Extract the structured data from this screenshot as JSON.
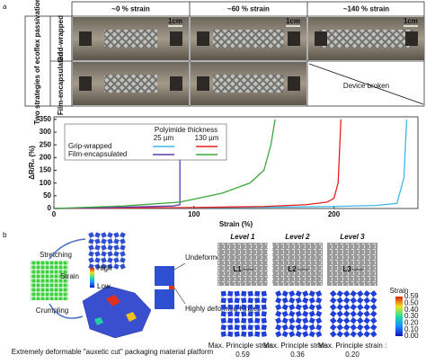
{
  "panel_labels": [
    "a",
    "b"
  ],
  "photo_table": {
    "side_label": "Two strategies of ecoflex passivation",
    "columns": [
      "~0 % strain",
      "~60 % strain",
      "~140 % strain"
    ],
    "rows": [
      "Grid-wrapped",
      "Film-encapsulated"
    ],
    "scale_bars": [
      "1cm",
      "1cm",
      "1cm"
    ],
    "broken": "Device broken"
  },
  "chart_data": {
    "type": "line",
    "ylabel": "ΔR/R₀ (%)",
    "xlabel": "Strain (%)",
    "xlim": [
      0,
      260
    ],
    "xticks": [
      0,
      100,
      200
    ],
    "ylim": [
      0,
      360
    ],
    "yticks": [
      0,
      50,
      100,
      150,
      200,
      250,
      300,
      350
    ],
    "legend": {
      "title": "Polyimide thickness",
      "columns": [
        "25 µm",
        "130 µm"
      ],
      "rows": [
        "Grip-wrapped",
        "Film-encapsulated"
      ]
    },
    "series": [
      {
        "color": "#3fb6e8",
        "x": [
          0,
          50,
          100,
          150,
          200,
          230,
          245,
          250,
          252
        ],
        "values": [
          0,
          2,
          3,
          5,
          8,
          12,
          20,
          120,
          350
        ]
      },
      {
        "color": "#e8201c",
        "x": [
          0,
          50,
          100,
          150,
          180,
          195,
          200,
          203,
          205
        ],
        "values": [
          0,
          2,
          4,
          8,
          15,
          25,
          40,
          100,
          350
        ]
      },
      {
        "color": "#5a3fb0",
        "x": [
          0,
          50,
          85,
          90,
          90
        ],
        "values": [
          0,
          5,
          10,
          15,
          200
        ]
      },
      {
        "color": "#3aa83a",
        "x": [
          0,
          50,
          90,
          120,
          140,
          150,
          155,
          158
        ],
        "values": [
          0,
          10,
          25,
          60,
          100,
          150,
          250,
          350
        ]
      }
    ]
  },
  "panel_b": {
    "stretching": "Stretching",
    "crumpling": "Crumpling",
    "strain_key": {
      "title": "Strain",
      "high": "High",
      "low": "Low"
    },
    "undeformed": "Undeformed region",
    "hinges": "Highly deformed hinges",
    "caption": "Extremely deformable \"auxetic cut\" packaging material platform",
    "levels": [
      "Level 1",
      "Level 2",
      "Level 3"
    ],
    "level_marks": [
      "L1",
      "L2",
      "L3"
    ],
    "colorbar": {
      "title": "Strain",
      "ticks": [
        "0.59",
        "0.50",
        "0.40",
        "0.30",
        "0.20",
        "0.10",
        "0.00"
      ]
    },
    "results": [
      {
        "label": "Max. Principle strain :",
        "value": "0.59"
      },
      {
        "label": "Max. Principle strain :",
        "value": "0.36"
      },
      {
        "label": "Max. Principle strain :",
        "value": "0.20"
      }
    ]
  }
}
